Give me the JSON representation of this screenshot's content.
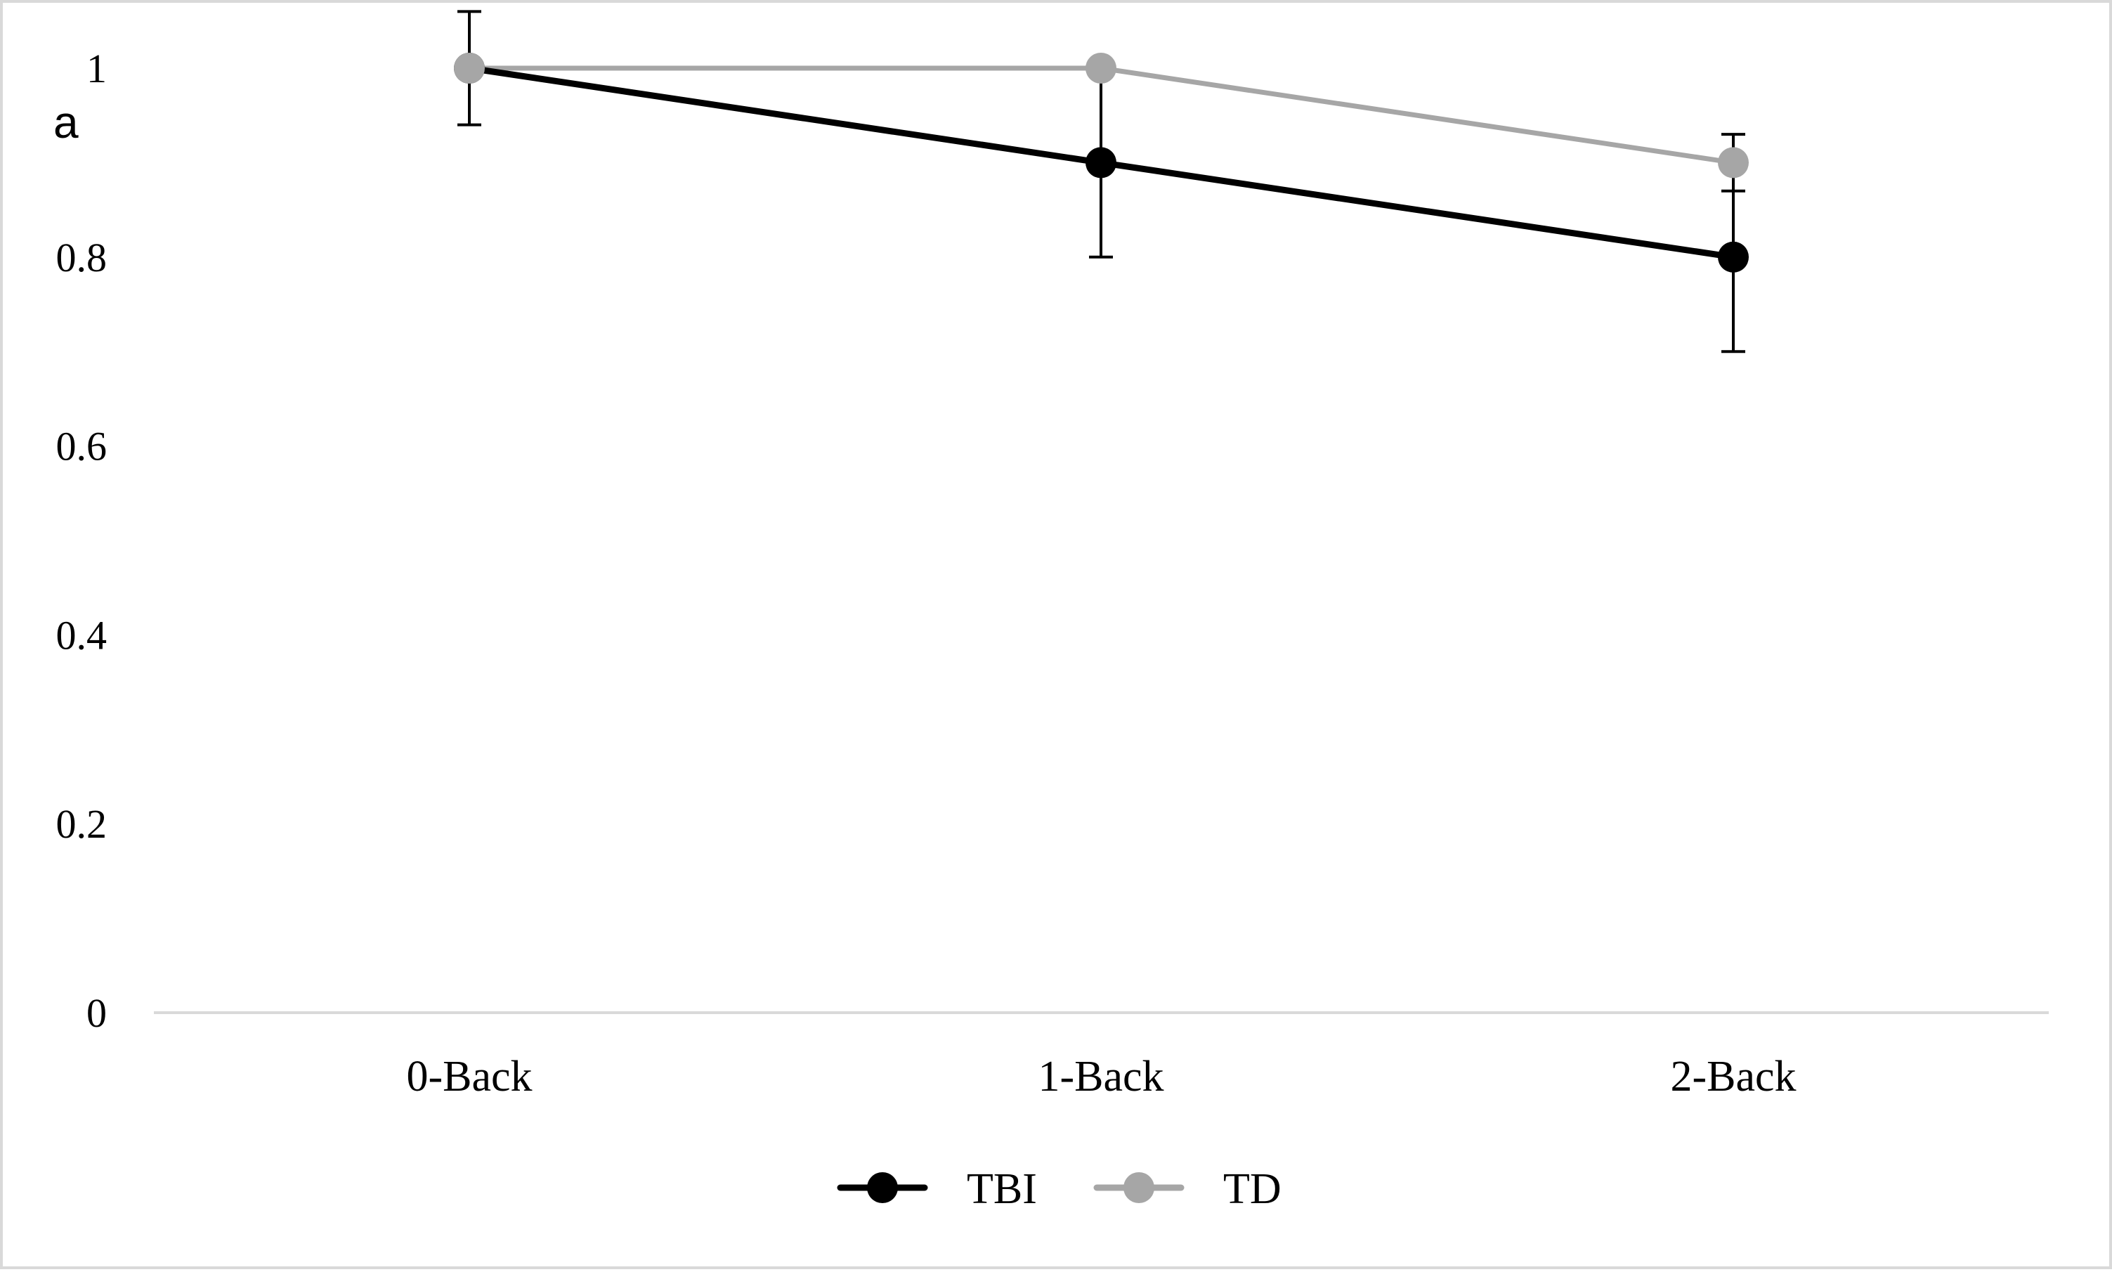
{
  "panel_label": "a",
  "chart_data": {
    "type": "line",
    "categories": [
      "0-Back",
      "1-Back",
      "2-Back"
    ],
    "ylim": [
      0,
      1
    ],
    "yticks": [
      0,
      0.2,
      0.4,
      0.6,
      0.8,
      1
    ],
    "ytick_labels": [
      "0",
      "0.2",
      "0.4",
      "0.6",
      "0.8",
      "1"
    ],
    "grid": "x-axis baseline only",
    "legend_position": "bottom-center",
    "series": [
      {
        "name": "TBI",
        "color": "#000000",
        "values": [
          1.0,
          0.9,
          0.8
        ],
        "error": [
          0.06,
          0.1,
          0.1
        ]
      },
      {
        "name": "TD",
        "color": "#a6a6a6",
        "values": [
          1.0,
          1.0,
          0.9
        ],
        "error": [
          0,
          0,
          0.03
        ]
      }
    ]
  }
}
